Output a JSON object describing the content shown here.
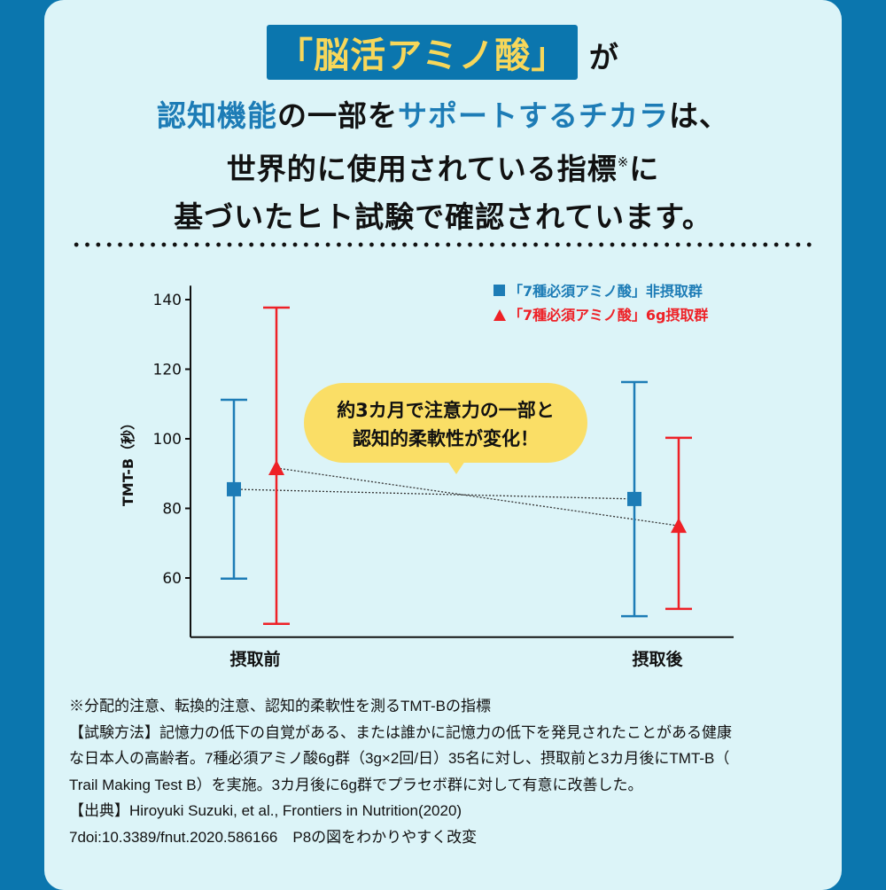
{
  "headline": {
    "line1_highlight": "「脳活アミノ酸」",
    "line1_rest": "が",
    "line2": [
      {
        "text": "認知機能",
        "color": "blue"
      },
      {
        "text": "の一部を",
        "color": "black"
      },
      {
        "text": "サポートするチカラ",
        "color": "blue"
      },
      {
        "text": "は、",
        "color": "black"
      }
    ],
    "line3": "世界的に使用されている指標",
    "line3_mark": "※",
    "line3_end": "に",
    "line4": "基づいたヒト試験で確認されています。"
  },
  "colors": {
    "background": "#0b76ae",
    "card": "#dcf4f8",
    "highlight_text": "#f7d75a",
    "blue": "#1d7cb6",
    "red": "#ee2127",
    "callout": "#fade66"
  },
  "callout": {
    "line1": "約3カ月で注意力の一部と",
    "line2": "認知的柔軟性が変化！"
  },
  "chart_data": {
    "type": "errorbar",
    "ylabel": "TMT-B（秒）",
    "ylim": [
      43,
      144
    ],
    "yticks": [
      60,
      80,
      100,
      120,
      140
    ],
    "categories": [
      "摂取前",
      "摂取後"
    ],
    "legend_position": "top-right",
    "grid": false,
    "series": [
      {
        "name": "「7種必須アミノ酸」非摂取群",
        "marker": "square",
        "color": "#1d7cb6",
        "values": [
          85.5,
          82.7
        ],
        "upper": [
          111.2,
          116.3
        ],
        "lower": [
          59.8,
          49.0
        ]
      },
      {
        "name": "「7種必須アミノ酸」6g摂取群",
        "marker": "triangle",
        "color": "#ee2127",
        "values": [
          91.6,
          75.0
        ],
        "upper": [
          137.7,
          100.3
        ],
        "lower": [
          46.8,
          51.1
        ]
      }
    ]
  },
  "notes": [
    "※分配的注意、転換的注意、認知的柔軟性を測るTMT-Bの指標",
    "【試験方法】記憶力の低下の自覚がある、または誰かに記憶力の低下を発見されたことがある健康",
    "な日本人の高齢者。7種必須アミノ酸6g群（3g×2回/日）35名に対し、摂取前と3カ月後にTMT-B（",
    "Trail Making Test B）を実施。3カ月後に6g群でプラセボ群に対して有意に改善した。",
    "【出典】Hiroyuki Suzuki, et al., Frontiers in Nutrition(2020)",
    "7doi:10.3389/fnut.2020.586166　P8の図をわかりやすく改変"
  ]
}
